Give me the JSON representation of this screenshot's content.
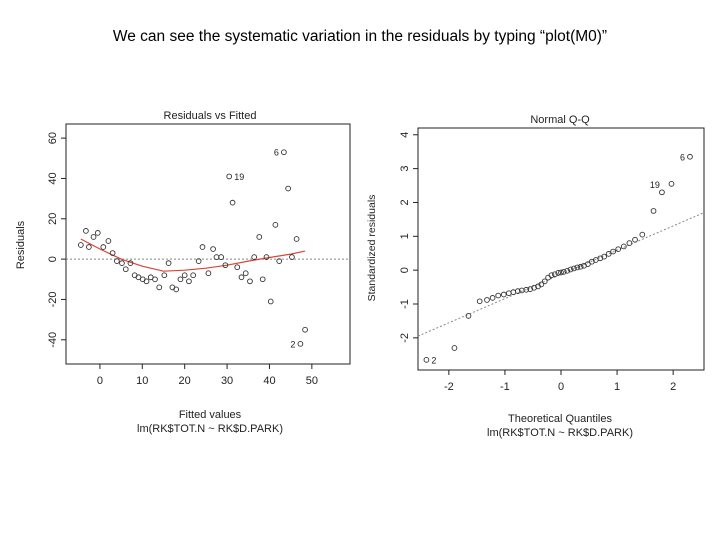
{
  "caption": "We can see the systematic variation in the residuals by typing “plot(M0)”",
  "colors": {
    "smooth": "#d8463a",
    "reference": "#888888",
    "axis": "#222222",
    "point": "#333333"
  },
  "chart_data": [
    {
      "type": "scatter",
      "title": "Residuals vs Fitted",
      "xlabel": "Fitted values",
      "sublabel": "lm(RK$TOT.N ~ RK$D.PARK)",
      "ylabel": "Residuals",
      "xlim": [
        -8,
        59
      ],
      "ylim": [
        -52,
        67
      ],
      "xticks": [
        0,
        10,
        20,
        30,
        40,
        50
      ],
      "yticks": [
        -40,
        -20,
        0,
        20,
        40,
        60
      ],
      "reference_y": 0,
      "points": [
        [
          -4.5,
          7
        ],
        [
          -3.3,
          14
        ],
        [
          -2.6,
          6
        ],
        [
          -1.5,
          11
        ],
        [
          -0.5,
          13
        ],
        [
          0.8,
          6
        ],
        [
          2,
          9
        ],
        [
          3,
          3
        ],
        [
          4,
          -1
        ],
        [
          5.2,
          -2
        ],
        [
          6.1,
          -5
        ],
        [
          7.2,
          -2
        ],
        [
          8.2,
          -8
        ],
        [
          9.1,
          -9
        ],
        [
          10.1,
          -10
        ],
        [
          11,
          -11
        ],
        [
          12,
          -9
        ],
        [
          13,
          -10
        ],
        [
          14,
          -14
        ],
        [
          15.2,
          -8
        ],
        [
          16.2,
          -2
        ],
        [
          17.1,
          -14
        ],
        [
          18,
          -15
        ],
        [
          19,
          -10
        ],
        [
          20,
          -8
        ],
        [
          21,
          -11
        ],
        [
          22,
          -8
        ],
        [
          23.3,
          -1
        ],
        [
          24.2,
          6
        ],
        [
          25.6,
          -7
        ],
        [
          26.7,
          5
        ],
        [
          27.5,
          1
        ],
        [
          28.6,
          1
        ],
        [
          29.6,
          -3
        ],
        [
          30.5,
          41
        ],
        [
          31.3,
          28
        ],
        [
          32.4,
          -4
        ],
        [
          33.4,
          -9
        ],
        [
          34.4,
          -7
        ],
        [
          35.4,
          -11
        ],
        [
          36.4,
          1
        ],
        [
          37.6,
          11
        ],
        [
          38.4,
          -10
        ],
        [
          39.3,
          1
        ],
        [
          40.3,
          -21
        ],
        [
          41.4,
          17
        ],
        [
          42.3,
          -1
        ],
        [
          43.4,
          53
        ],
        [
          44.4,
          35
        ],
        [
          45.3,
          1
        ],
        [
          46.4,
          10
        ],
        [
          47.3,
          -42
        ],
        [
          48.4,
          -35
        ]
      ],
      "labels": [
        {
          "text": "19",
          "x": 30.5,
          "y": 41,
          "side": "right"
        },
        {
          "text": "6",
          "x": 43.4,
          "y": 53,
          "side": "left"
        },
        {
          "text": "2",
          "x": 47.3,
          "y": -42,
          "side": "left"
        }
      ],
      "smooth": [
        [
          -4.5,
          10
        ],
        [
          0,
          5
        ],
        [
          5,
          0
        ],
        [
          10,
          -3.5
        ],
        [
          15,
          -6
        ],
        [
          20,
          -5.5
        ],
        [
          25,
          -4.5
        ],
        [
          30,
          -3
        ],
        [
          35,
          -1
        ],
        [
          40,
          0.8
        ],
        [
          45,
          2.5
        ],
        [
          48.4,
          4
        ]
      ]
    },
    {
      "type": "scatter",
      "title": "Normal Q-Q",
      "xlabel": "Theoretical Quantiles",
      "sublabel": "lm(RK$TOT.N ~ RK$D.PARK)",
      "ylabel": "Standardized residuals",
      "xlim": [
        -2.55,
        2.55
      ],
      "ylim": [
        -2.95,
        4.2
      ],
      "xticks": [
        -2,
        -1,
        0,
        1,
        2
      ],
      "yticks": [
        -2,
        -1,
        0,
        1,
        2,
        3,
        4
      ],
      "reference_line": [
        [
          -2.55,
          -1.95
        ],
        [
          2.55,
          1.7
        ]
      ],
      "points": [
        [
          -2.4,
          -2.65
        ],
        [
          -1.9,
          -2.3
        ],
        [
          -1.65,
          -1.35
        ],
        [
          -1.45,
          -0.92
        ],
        [
          -1.32,
          -0.88
        ],
        [
          -1.22,
          -0.82
        ],
        [
          -1.12,
          -0.75
        ],
        [
          -1.02,
          -0.72
        ],
        [
          -0.93,
          -0.68
        ],
        [
          -0.85,
          -0.65
        ],
        [
          -0.77,
          -0.62
        ],
        [
          -0.7,
          -0.6
        ],
        [
          -0.62,
          -0.58
        ],
        [
          -0.55,
          -0.56
        ],
        [
          -0.48,
          -0.52
        ],
        [
          -0.41,
          -0.48
        ],
        [
          -0.35,
          -0.42
        ],
        [
          -0.29,
          -0.33
        ],
        [
          -0.23,
          -0.22
        ],
        [
          -0.17,
          -0.15
        ],
        [
          -0.11,
          -0.12
        ],
        [
          -0.05,
          -0.08
        ],
        [
          0,
          -0.07
        ],
        [
          0.05,
          -0.05
        ],
        [
          0.11,
          -0.02
        ],
        [
          0.17,
          0.02
        ],
        [
          0.23,
          0.05
        ],
        [
          0.29,
          0.08
        ],
        [
          0.35,
          0.1
        ],
        [
          0.41,
          0.13
        ],
        [
          0.48,
          0.18
        ],
        [
          0.55,
          0.25
        ],
        [
          0.62,
          0.3
        ],
        [
          0.7,
          0.35
        ],
        [
          0.77,
          0.4
        ],
        [
          0.85,
          0.48
        ],
        [
          0.93,
          0.55
        ],
        [
          1.02,
          0.62
        ],
        [
          1.12,
          0.7
        ],
        [
          1.22,
          0.8
        ],
        [
          1.32,
          0.9
        ],
        [
          1.45,
          1.05
        ],
        [
          1.65,
          1.75
        ],
        [
          1.8,
          2.3
        ],
        [
          1.97,
          2.55
        ],
        [
          2.3,
          3.35
        ]
      ],
      "labels": [
        {
          "text": "6",
          "x": 2.3,
          "y": 3.35,
          "side": "left"
        },
        {
          "text": "19",
          "x": 1.8,
          "y": 2.3,
          "side": "topleft"
        },
        {
          "text": "2",
          "x": -2.4,
          "y": -2.65,
          "side": "right"
        }
      ]
    }
  ]
}
